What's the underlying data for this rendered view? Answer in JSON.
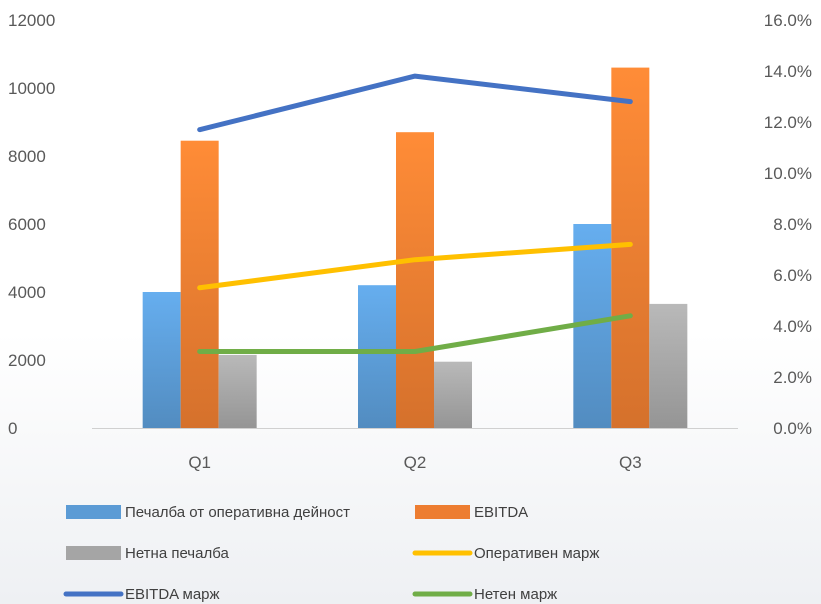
{
  "chart_data": {
    "type": "bar",
    "title": "",
    "categories": [
      "Q1",
      "Q2",
      "Q3"
    ],
    "left_axis": {
      "min": 0,
      "max": 12000,
      "ticks": [
        "0",
        "2000",
        "4000",
        "6000",
        "8000",
        "10000",
        "12000"
      ]
    },
    "right_axis": {
      "min": 0,
      "max": 16,
      "ticks": [
        "0.0%",
        "2.0%",
        "4.0%",
        "6.0%",
        "8.0%",
        "10.0%",
        "12.0%",
        "14.0%",
        "16.0%"
      ]
    },
    "bar_series": [
      {
        "name": "Печалба от оперативна дейност",
        "values": [
          4000,
          4200,
          6000
        ],
        "color": "#5b9bd5"
      },
      {
        "name": "EBITDA",
        "values": [
          8450,
          8700,
          10600
        ],
        "color": "#ed7d31"
      },
      {
        "name": "Нетна печалба",
        "values": [
          2150,
          1950,
          3650
        ],
        "color": "#a5a5a5"
      }
    ],
    "line_series": [
      {
        "name": "Оперативен марж",
        "values": [
          5.5,
          6.6,
          7.2
        ],
        "color": "#ffc000",
        "axis": "right"
      },
      {
        "name": "EBITDA марж",
        "values": [
          11.7,
          13.8,
          12.8
        ],
        "color": "#4472c4",
        "axis": "right"
      },
      {
        "name": "Нетен марж",
        "values": [
          3.0,
          3.0,
          4.4
        ],
        "color": "#70ad47",
        "axis": "right"
      }
    ],
    "grid": false,
    "legend_position": "bottom"
  }
}
